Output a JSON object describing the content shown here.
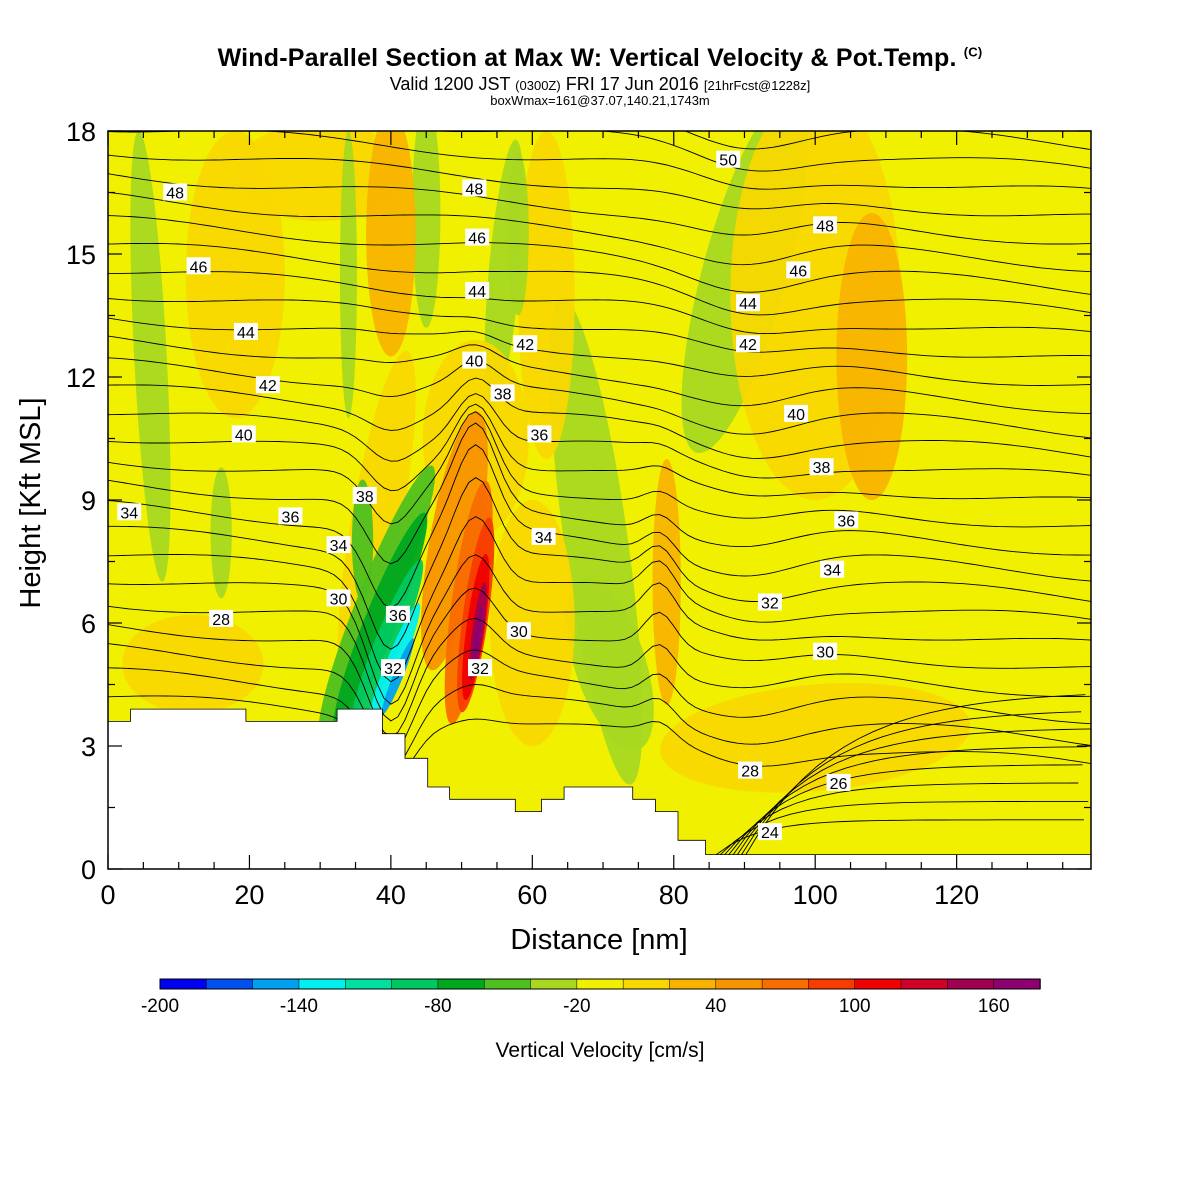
{
  "chart_data": {
    "type": "heatmap",
    "title": "Wind-Parallel Section at Max W: Vertical Velocity & Pot.Temp.",
    "title_mark": "(C)",
    "subtitle_main": "Valid 1200 JST",
    "subtitle_utc": "(0300Z)",
    "subtitle_date": "FRI 17 Jun 2016",
    "subtitle_fcst": "[21hrFcst@1228z]",
    "subtitle2": "boxWmax=161@37.07,140.21,1743m",
    "xlabel": "Distance [nm]",
    "ylabel": "Height [Kft MSL]",
    "xlim": [
      0,
      139
    ],
    "ylim": [
      0,
      18
    ],
    "x_ticks": [
      "0",
      "20",
      "40",
      "60",
      "80",
      "100",
      "120"
    ],
    "y_ticks": [
      "0",
      "3",
      "6",
      "9",
      "12",
      "15",
      "18"
    ],
    "colorbar": {
      "label": "Vertical Velocity [cm/s]",
      "ticks": [
        "-200",
        "-140",
        "-80",
        "-20",
        "40",
        "100",
        "160"
      ],
      "colors": [
        "#0000f0",
        "#0050f0",
        "#00a0f0",
        "#00f0f0",
        "#00e0a0",
        "#00c860",
        "#00a820",
        "#50c020",
        "#a8d820",
        "#f0f000",
        "#f8d800",
        "#f8b400",
        "#f89400",
        "#f86c00",
        "#f83c00",
        "#f00000",
        "#d00028",
        "#a00050",
        "#8c0070"
      ]
    },
    "contour_labels": [
      {
        "value": "48",
        "x": 9.5,
        "y": 16.5
      },
      {
        "value": "46",
        "x": 12.8,
        "y": 14.7
      },
      {
        "value": "44",
        "x": 19.5,
        "y": 13.1
      },
      {
        "value": "42",
        "x": 22.6,
        "y": 11.8
      },
      {
        "value": "40",
        "x": 19.2,
        "y": 10.6
      },
      {
        "value": "34",
        "x": 3.0,
        "y": 8.7
      },
      {
        "value": "36",
        "x": 25.8,
        "y": 8.6
      },
      {
        "value": "38",
        "x": 36.3,
        "y": 9.1
      },
      {
        "value": "34",
        "x": 32.6,
        "y": 7.9
      },
      {
        "value": "30",
        "x": 32.6,
        "y": 6.6
      },
      {
        "value": "28",
        "x": 16.0,
        "y": 6.1
      },
      {
        "value": "36",
        "x": 41.0,
        "y": 6.2
      },
      {
        "value": "32",
        "x": 40.3,
        "y": 4.9
      },
      {
        "value": "48",
        "x": 51.8,
        "y": 16.6
      },
      {
        "value": "46",
        "x": 52.2,
        "y": 15.4
      },
      {
        "value": "44",
        "x": 52.2,
        "y": 14.1
      },
      {
        "value": "40",
        "x": 51.8,
        "y": 12.4
      },
      {
        "value": "42",
        "x": 59.0,
        "y": 12.8
      },
      {
        "value": "38",
        "x": 55.8,
        "y": 11.6
      },
      {
        "value": "36",
        "x": 61.0,
        "y": 10.6
      },
      {
        "value": "34",
        "x": 61.6,
        "y": 8.1
      },
      {
        "value": "30",
        "x": 58.1,
        "y": 5.8
      },
      {
        "value": "32",
        "x": 52.6,
        "y": 4.9
      },
      {
        "value": "50",
        "x": 87.7,
        "y": 17.3
      },
      {
        "value": "48",
        "x": 101.4,
        "y": 15.7
      },
      {
        "value": "46",
        "x": 97.6,
        "y": 14.6
      },
      {
        "value": "44",
        "x": 90.5,
        "y": 13.8
      },
      {
        "value": "42",
        "x": 90.5,
        "y": 12.8
      },
      {
        "value": "40",
        "x": 97.3,
        "y": 11.1
      },
      {
        "value": "38",
        "x": 100.9,
        "y": 9.8
      },
      {
        "value": "36",
        "x": 104.4,
        "y": 8.5
      },
      {
        "value": "34",
        "x": 102.4,
        "y": 7.3
      },
      {
        "value": "32",
        "x": 93.6,
        "y": 6.5
      },
      {
        "value": "30",
        "x": 101.4,
        "y": 5.3
      },
      {
        "value": "28",
        "x": 90.8,
        "y": 2.4
      },
      {
        "value": "26",
        "x": 103.3,
        "y": 2.1
      },
      {
        "value": "24",
        "x": 93.6,
        "y": 0.9
      }
    ],
    "terrain": [
      [
        0,
        3.6
      ],
      [
        3.2,
        3.6
      ],
      [
        3.2,
        3.9
      ],
      [
        19.5,
        3.9
      ],
      [
        19.5,
        3.6
      ],
      [
        32.4,
        3.6
      ],
      [
        32.4,
        3.9
      ],
      [
        38.8,
        3.9
      ],
      [
        38.8,
        3.3
      ],
      [
        42.0,
        3.3
      ],
      [
        42.0,
        2.7
      ],
      [
        45.2,
        2.7
      ],
      [
        45.2,
        2.0
      ],
      [
        48.3,
        2.0
      ],
      [
        48.3,
        1.7
      ],
      [
        57.6,
        1.7
      ],
      [
        57.6,
        1.4
      ],
      [
        61.3,
        1.4
      ],
      [
        61.3,
        1.7
      ],
      [
        64.5,
        1.7
      ],
      [
        64.5,
        2.0
      ],
      [
        74.2,
        2.0
      ],
      [
        74.2,
        1.7
      ],
      [
        77.4,
        1.7
      ],
      [
        77.4,
        1.4
      ],
      [
        80.6,
        1.4
      ],
      [
        80.6,
        0.7
      ],
      [
        84.5,
        0.7
      ],
      [
        84.5,
        0.35
      ],
      [
        139,
        0.35
      ]
    ]
  }
}
